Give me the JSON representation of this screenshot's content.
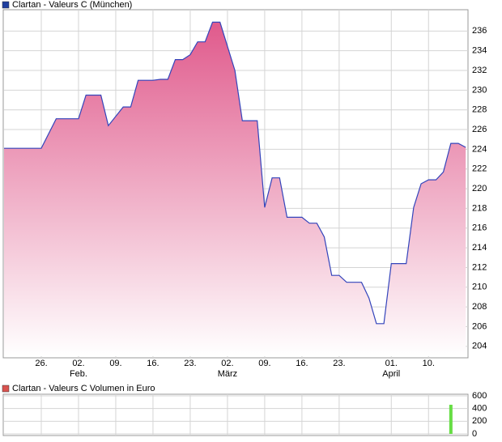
{
  "chart_data": [
    {
      "type": "area",
      "title": "Clartan - Valeurs C (München)",
      "legend_color": "#1f3f9f",
      "color": "#3344bb",
      "fill_top": "#e05a8c",
      "fill_bottom": "#ffffff",
      "x": [
        0,
        5,
        7,
        10,
        11,
        13,
        14,
        16,
        17,
        18,
        20,
        21,
        22,
        23,
        24,
        25,
        26,
        27,
        28,
        29,
        31,
        32,
        34,
        35,
        36,
        37,
        38,
        40,
        41,
        42,
        43,
        44,
        45,
        46,
        48,
        49,
        50,
        51,
        52,
        54,
        55,
        56,
        57,
        58,
        59,
        60,
        61,
        62
      ],
      "values": [
        224.1,
        224.1,
        227.1,
        227.1,
        229.5,
        229.5,
        226.4,
        228.3,
        228.3,
        231.0,
        231.0,
        231.1,
        231.1,
        233.1,
        233.1,
        233.6,
        234.9,
        234.9,
        236.9,
        236.9,
        232.0,
        226.9,
        226.9,
        218.1,
        221.1,
        221.1,
        217.1,
        217.1,
        216.5,
        216.5,
        215.1,
        211.2,
        211.2,
        210.5,
        210.5,
        208.9,
        206.3,
        206.3,
        212.4,
        212.4,
        218.1,
        220.5,
        220.9,
        220.9,
        221.7,
        224.6,
        224.6,
        224.2
      ],
      "xlim": [
        0,
        62.3
      ],
      "xticks": [
        {
          "value": 5,
          "label": "26."
        },
        {
          "value": 10,
          "label": "02."
        },
        {
          "value": 15,
          "label": "09."
        },
        {
          "value": 20,
          "label": "16."
        },
        {
          "value": 25,
          "label": "23."
        },
        {
          "value": 30,
          "label": "02."
        },
        {
          "value": 35,
          "label": "09."
        },
        {
          "value": 40,
          "label": "16."
        },
        {
          "value": 45,
          "label": "23."
        },
        {
          "value": 52,
          "label": "01."
        },
        {
          "value": 57,
          "label": "10."
        }
      ],
      "months": [
        {
          "value": 10,
          "label": "Feb."
        },
        {
          "value": 30,
          "label": "März"
        },
        {
          "value": 52,
          "label": "April"
        }
      ],
      "ylim": [
        203,
        238
      ],
      "yticks": [
        204,
        206,
        208,
        210,
        212,
        214,
        216,
        218,
        220,
        222,
        224,
        226,
        228,
        230,
        232,
        234,
        236
      ],
      "grid": true
    },
    {
      "type": "bar",
      "title": "Clartan - Valeurs C Volumen in Euro",
      "legend_color": "#d9534f",
      "color": "#66dd44",
      "x": [
        60
      ],
      "values": [
        460
      ],
      "xlim": [
        0,
        62.3
      ],
      "xticks": [
        5,
        10,
        15,
        20,
        25,
        30,
        35,
        40,
        45,
        52,
        57
      ],
      "ylim": [
        0,
        600
      ],
      "yticks": [
        0,
        200,
        400,
        600
      ],
      "grid": true
    }
  ]
}
